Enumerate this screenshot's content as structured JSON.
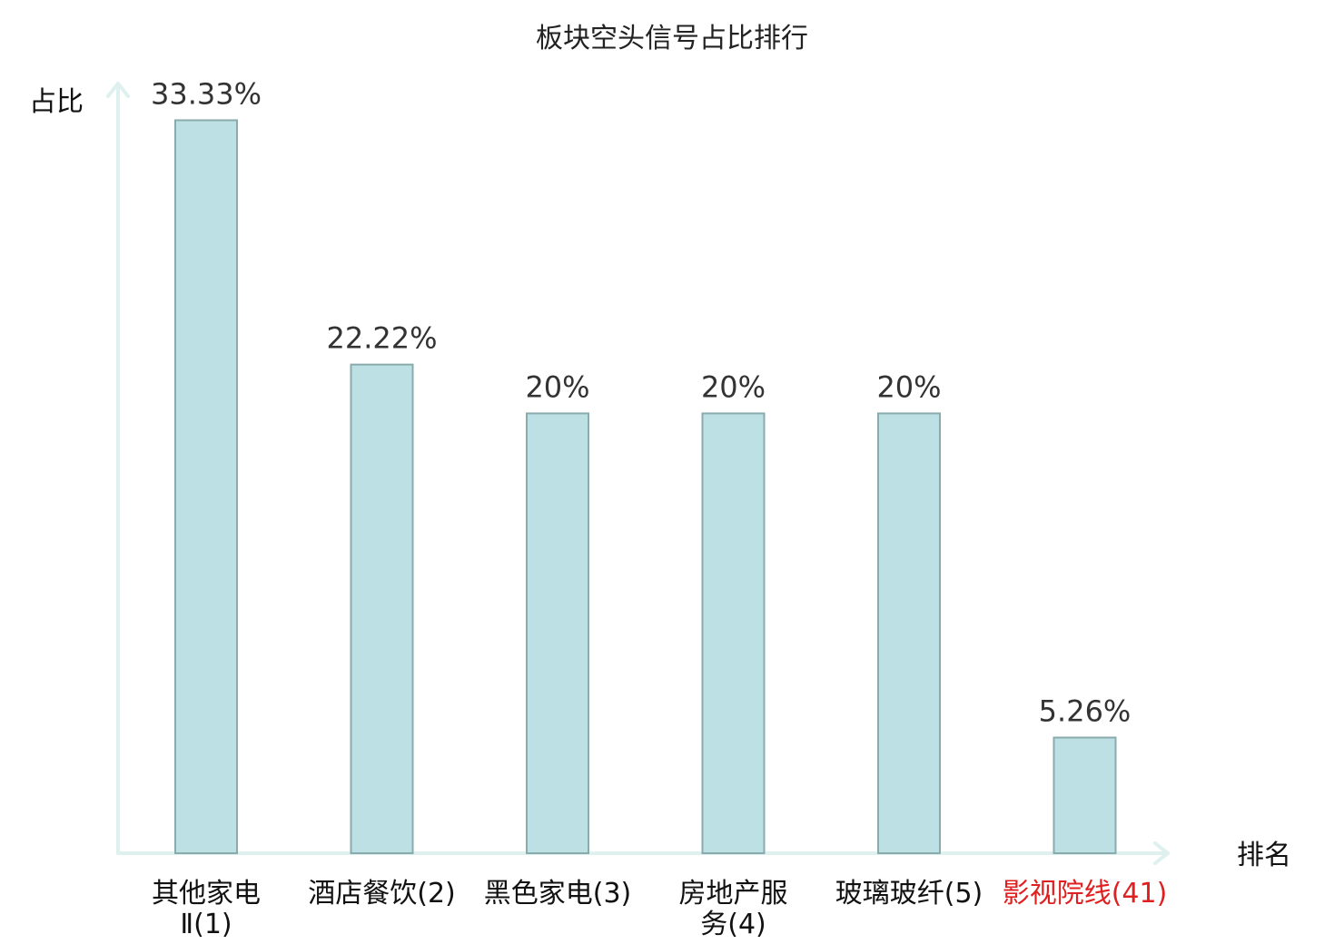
{
  "chart_data": {
    "type": "bar",
    "title": "板块空头信号占比排行",
    "ylabel": "占比",
    "xlabel": "排名",
    "categories": [
      {
        "lines": [
          "其他家电",
          "Ⅱ(1)"
        ],
        "highlight": false
      },
      {
        "lines": [
          "酒店餐饮(2)"
        ],
        "highlight": false
      },
      {
        "lines": [
          "黑色家电(3)"
        ],
        "highlight": false
      },
      {
        "lines": [
          "房地产服",
          "务(4)"
        ],
        "highlight": false
      },
      {
        "lines": [
          "玻璃玻纤(5)"
        ],
        "highlight": false
      },
      {
        "lines": [
          "影视院线(41)"
        ],
        "highlight": true
      }
    ],
    "values": [
      33.33,
      22.22,
      20,
      20,
      20,
      5.26
    ],
    "value_labels": [
      "33.33%",
      "22.22%",
      "20%",
      "20%",
      "20%",
      "5.26%"
    ],
    "ylim": [
      0,
      35
    ],
    "grid": false,
    "colors": {
      "bar_fill": "#bce0e3",
      "bar_stroke": "#8aabac",
      "axis": "#dff1ee",
      "highlight_text": "#e02020"
    }
  }
}
